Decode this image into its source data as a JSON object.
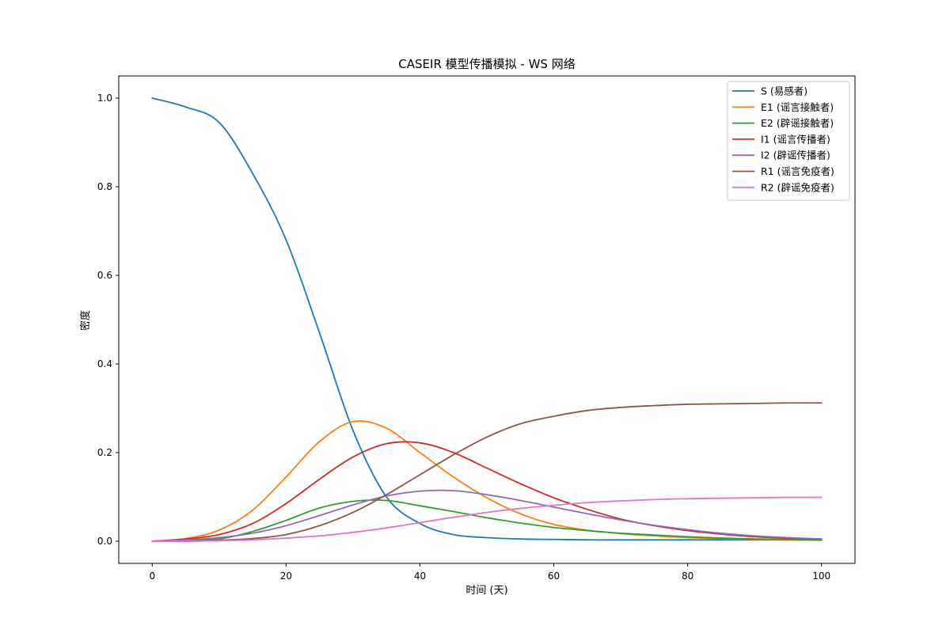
{
  "chart_data": {
    "type": "line",
    "title": "CASEIR 模型传播模拟 - WS 网络",
    "xlabel": "时间 (天)",
    "ylabel": "密度",
    "xlim": [
      -5,
      105
    ],
    "ylim": [
      -0.05,
      1.05
    ],
    "xticks": [
      0,
      20,
      40,
      60,
      80,
      100
    ],
    "yticks": [
      0.0,
      0.2,
      0.4,
      0.6,
      0.8,
      1.0
    ],
    "xtick_labels": [
      "0",
      "20",
      "40",
      "60",
      "80",
      "100"
    ],
    "ytick_labels": [
      "0.0",
      "0.2",
      "0.4",
      "0.6",
      "0.8",
      "1.0"
    ],
    "grid": false,
    "legend_position": "top-right",
    "x": [
      0,
      5,
      10,
      15,
      20,
      25,
      30,
      35,
      40,
      45,
      50,
      55,
      60,
      65,
      70,
      75,
      80,
      85,
      90,
      95,
      100
    ],
    "series": [
      {
        "name": "S (易感者)",
        "color": "#1f77b4",
        "values": [
          1.0,
          0.98,
          0.945,
          0.83,
          0.68,
          0.47,
          0.25,
          0.1,
          0.04,
          0.015,
          0.008,
          0.005,
          0.004,
          0.003,
          0.003,
          0.003,
          0.003,
          0.003,
          0.003,
          0.003,
          0.003
        ]
      },
      {
        "name": "E1 (谣言接触者)",
        "color": "#ff7f0e",
        "values": [
          0.0,
          0.006,
          0.025,
          0.07,
          0.145,
          0.225,
          0.27,
          0.255,
          0.2,
          0.145,
          0.098,
          0.062,
          0.038,
          0.025,
          0.017,
          0.012,
          0.008,
          0.006,
          0.004,
          0.003,
          0.002
        ]
      },
      {
        "name": "E2 (辟谣接触者)",
        "color": "#2ca02c",
        "values": [
          0.0,
          0.002,
          0.005,
          0.022,
          0.047,
          0.075,
          0.09,
          0.092,
          0.08,
          0.067,
          0.053,
          0.041,
          0.031,
          0.024,
          0.018,
          0.014,
          0.01,
          0.007,
          0.005,
          0.004,
          0.003
        ]
      },
      {
        "name": "I1 (谣言传播者)",
        "color": "#d62728",
        "values": [
          0.0,
          0.005,
          0.015,
          0.04,
          0.085,
          0.14,
          0.19,
          0.22,
          0.222,
          0.2,
          0.165,
          0.13,
          0.098,
          0.072,
          0.05,
          0.035,
          0.024,
          0.016,
          0.01,
          0.007,
          0.005
        ]
      },
      {
        "name": "I2 (辟谣传播者)",
        "color": "#9467bd",
        "values": [
          0.0,
          0.003,
          0.008,
          0.018,
          0.035,
          0.058,
          0.082,
          0.102,
          0.113,
          0.114,
          0.105,
          0.092,
          0.077,
          0.062,
          0.048,
          0.036,
          0.026,
          0.018,
          0.012,
          0.008,
          0.005
        ]
      },
      {
        "name": "R1 (谣言免疫者)",
        "color": "#8c564b",
        "values": [
          0.0,
          0.0,
          0.002,
          0.006,
          0.015,
          0.035,
          0.065,
          0.105,
          0.15,
          0.195,
          0.235,
          0.265,
          0.282,
          0.295,
          0.302,
          0.306,
          0.309,
          0.31,
          0.311,
          0.312,
          0.312
        ]
      },
      {
        "name": "R2 (辟谣免疫者)",
        "color": "#e377c2",
        "values": [
          0.0,
          0.0,
          0.001,
          0.003,
          0.007,
          0.012,
          0.02,
          0.03,
          0.042,
          0.054,
          0.065,
          0.074,
          0.081,
          0.087,
          0.091,
          0.094,
          0.096,
          0.097,
          0.098,
          0.099,
          0.099
        ]
      }
    ]
  }
}
